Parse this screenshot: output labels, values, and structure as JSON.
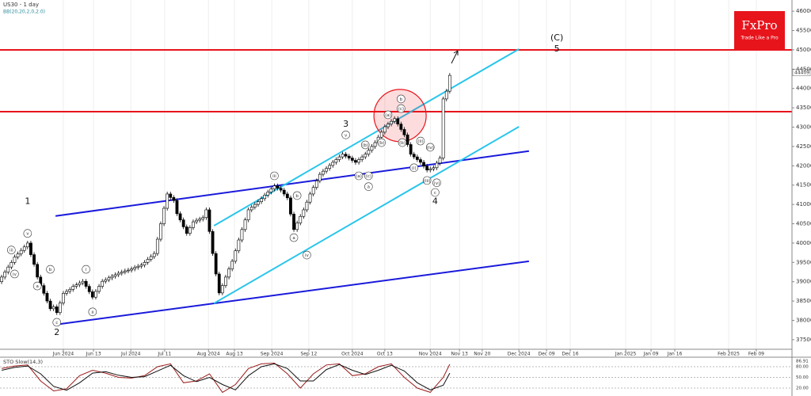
{
  "header": {
    "symbol": "US30 - 1 day",
    "indicator": "BB(20,20,2,0,2.0)"
  },
  "logo": {
    "name": "FxPro",
    "tagline": "Trade Like a Pro"
  },
  "chart_data": [
    {
      "type": "candlestick",
      "xlim": [
        -0.5,
        243.4
      ],
      "xticks": [
        {
          "value": 19,
          "label": "Jun 2024"
        },
        {
          "value": 28.3,
          "label": "Jun 13"
        },
        {
          "value": 39.8,
          "label": "Jul 2024"
        },
        {
          "value": 50.2,
          "label": "Jul 11"
        },
        {
          "value": 63.7,
          "label": "Aug 2024"
        },
        {
          "value": 71.7,
          "label": "Aug 13"
        },
        {
          "value": 83.2,
          "label": "Sep 2024"
        },
        {
          "value": 94.6,
          "label": "Sep 12"
        },
        {
          "value": 108,
          "label": "Oct 2024"
        },
        {
          "value": 118,
          "label": "Oct 13"
        },
        {
          "value": 132,
          "label": "Nov 2024"
        },
        {
          "value": 141,
          "label": "Nov 13"
        },
        {
          "value": 148,
          "label": "Nov 20"
        },
        {
          "value": 159.3,
          "label": "Dec 2024"
        },
        {
          "value": 167.8,
          "label": "Dec 09"
        },
        {
          "value": 175.1,
          "label": "Dec 16"
        },
        {
          "value": 192.2,
          "label": "Jan 2025"
        },
        {
          "value": 200,
          "label": "Jan 09"
        },
        {
          "value": 207.3,
          "label": "Jan 16"
        },
        {
          "value": 223.9,
          "label": "Feb 2025"
        },
        {
          "value": 232.4,
          "label": "Feb 09"
        }
      ],
      "ylim": [
        37170,
        46290
      ],
      "yticks": [
        37500,
        38000,
        38500,
        39000,
        39500,
        40000,
        40500,
        41000,
        41500,
        42000,
        42500,
        43000,
        43500,
        44000,
        44500,
        45000,
        45500,
        46000
      ],
      "xgrid": true,
      "up_color": "#ffffff",
      "down_color": "#000000",
      "last_price": 44409,
      "open": [
        39000,
        39120,
        39250,
        39380,
        39500,
        39640,
        39720,
        39810,
        39900,
        40000,
        39700,
        39450,
        39120,
        38900,
        38700,
        38500,
        38300,
        38350,
        38200,
        38450,
        38700,
        38750,
        38800,
        38880,
        38920,
        38970,
        39010,
        38880,
        38740,
        38600,
        38750,
        38880,
        39010,
        39050,
        39100,
        39140,
        39180,
        39220,
        39250,
        39280,
        39300,
        39330,
        39370,
        39400,
        39430,
        39500,
        39580,
        39650,
        39730,
        40100,
        40500,
        40900,
        41270,
        41180,
        41100,
        40760,
        40600,
        40420,
        40250,
        40400,
        40550,
        40590,
        40620,
        40660,
        40860,
        40300,
        39730,
        39200,
        38710,
        38900,
        39120,
        39330,
        39530,
        39800,
        40080,
        40350,
        40600,
        40860,
        40930,
        41000,
        41070,
        41150,
        41240,
        41320,
        41400,
        41480,
        41420,
        41370,
        41270,
        41170,
        40750,
        40350,
        40520,
        40690,
        40860,
        41060,
        41270,
        41440,
        41610,
        41780,
        41860,
        41930,
        42010,
        42090,
        42160,
        42230,
        42300,
        42250,
        42200,
        42140,
        42090,
        42160,
        42230,
        42300,
        42400,
        42500,
        42600,
        42740,
        42870,
        43010,
        43080,
        43150,
        43220,
        43080,
        42940,
        42800,
        42550,
        42300,
        42230,
        42160,
        42090,
        41990,
        41890,
        41920,
        41950,
        42070,
        42200,
        43730,
        43930
      ],
      "high": [
        39180,
        39310,
        39440,
        39560,
        39700,
        39780,
        39870,
        39960,
        40060,
        40060,
        39760,
        39510,
        39180,
        38960,
        38760,
        38560,
        38410,
        38410,
        38510,
        38760,
        38810,
        38860,
        38940,
        38980,
        39030,
        39070,
        39070,
        38940,
        38800,
        38810,
        38940,
        39070,
        39110,
        39160,
        39200,
        39240,
        39280,
        39310,
        39340,
        39360,
        39390,
        39430,
        39460,
        39490,
        39560,
        39640,
        39710,
        39790,
        40160,
        40560,
        40960,
        41330,
        41330,
        41240,
        41160,
        40820,
        40660,
        40480,
        40460,
        40610,
        40650,
        40680,
        40720,
        40920,
        40920,
        40360,
        39790,
        39260,
        38960,
        39180,
        39390,
        39590,
        39860,
        40140,
        40410,
        40660,
        40920,
        40990,
        41060,
        41130,
        41210,
        41300,
        41380,
        41460,
        41540,
        41540,
        41480,
        41430,
        41330,
        41230,
        40810,
        40580,
        40750,
        40920,
        41120,
        41330,
        41500,
        41670,
        41840,
        41920,
        41990,
        42070,
        42150,
        42220,
        42290,
        42360,
        42360,
        42310,
        42260,
        42200,
        42220,
        42290,
        42360,
        42460,
        42560,
        42660,
        42800,
        42930,
        43070,
        43140,
        43210,
        43280,
        43280,
        43140,
        43000,
        42860,
        42610,
        42360,
        42290,
        42220,
        42150,
        42050,
        41980,
        42010,
        42130,
        42260,
        43790,
        43990,
        44400
      ],
      "low": [
        38940,
        39060,
        39190,
        39320,
        39440,
        39580,
        39660,
        39750,
        39840,
        39640,
        39390,
        39060,
        38840,
        38640,
        38440,
        38240,
        38240,
        38140,
        38140,
        38390,
        38640,
        38690,
        38740,
        38820,
        38860,
        38910,
        38820,
        38680,
        38540,
        38540,
        38690,
        38820,
        38950,
        38990,
        39040,
        39080,
        39120,
        39160,
        39190,
        39220,
        39240,
        39270,
        39310,
        39340,
        39370,
        39440,
        39520,
        39590,
        39670,
        40040,
        40440,
        40840,
        41120,
        41040,
        40700,
        40540,
        40360,
        40190,
        40190,
        40340,
        40490,
        40530,
        40560,
        40600,
        40240,
        39670,
        39140,
        38650,
        38650,
        38840,
        39060,
        39270,
        39470,
        39740,
        40020,
        40290,
        40540,
        40800,
        40870,
        40940,
        41010,
        41090,
        41180,
        41260,
        41340,
        41360,
        41310,
        41210,
        41110,
        40690,
        40290,
        40290,
        40460,
        40630,
        40800,
        41000,
        41210,
        41380,
        41550,
        41720,
        41800,
        41870,
        41950,
        42030,
        42100,
        42170,
        42190,
        42140,
        42080,
        42030,
        42030,
        42100,
        42170,
        42240,
        42340,
        42440,
        42540,
        42680,
        42810,
        42950,
        43020,
        43090,
        43020,
        42880,
        42740,
        42490,
        42240,
        42170,
        42100,
        42030,
        41930,
        41830,
        41830,
        41860,
        41890,
        42010,
        42140,
        43670,
        43870
      ],
      "close": [
        39120,
        39250,
        39380,
        39500,
        39640,
        39720,
        39810,
        39900,
        40000,
        39700,
        39450,
        39120,
        38900,
        38700,
        38500,
        38300,
        38350,
        38200,
        38450,
        38700,
        38750,
        38800,
        38880,
        38920,
        38970,
        39010,
        38880,
        38740,
        38600,
        38750,
        38880,
        39010,
        39050,
        39100,
        39140,
        39180,
        39220,
        39250,
        39280,
        39300,
        39330,
        39370,
        39400,
        39430,
        39500,
        39580,
        39650,
        39730,
        40100,
        40500,
        40900,
        41270,
        41180,
        41100,
        40760,
        40600,
        40420,
        40250,
        40400,
        40550,
        40590,
        40620,
        40660,
        40860,
        40300,
        39730,
        39200,
        38710,
        38900,
        39120,
        39330,
        39530,
        39800,
        40080,
        40350,
        40600,
        40860,
        40930,
        41000,
        41070,
        41150,
        41240,
        41320,
        41400,
        41480,
        41420,
        41370,
        41270,
        41170,
        40750,
        40350,
        40520,
        40690,
        40860,
        41060,
        41270,
        41440,
        41610,
        41780,
        41860,
        41930,
        42010,
        42090,
        42160,
        42230,
        42300,
        42250,
        42200,
        42140,
        42090,
        42160,
        42230,
        42300,
        42400,
        42500,
        42600,
        42740,
        42870,
        43010,
        43080,
        43150,
        43220,
        43080,
        42940,
        42800,
        42550,
        42300,
        42230,
        42160,
        42090,
        41990,
        41890,
        41920,
        41950,
        42070,
        42200,
        43730,
        43930,
        44340
      ],
      "levels": [
        {
          "value": 45000,
          "color": "#e8141c"
        },
        {
          "value": 43400,
          "color": "#e8141c"
        }
      ],
      "trend_lines": [
        {
          "color": "#1a1adc",
          "x": [
            16.6,
            162.4
          ],
          "y": [
            40700,
            42380
          ]
        },
        {
          "color": "#1a1adc",
          "x": [
            16.6,
            162.4
          ],
          "y": [
            37890,
            39530
          ]
        },
        {
          "color": "#29c5ec",
          "x": [
            65.4,
            159.3
          ],
          "y": [
            40450,
            45020
          ]
        },
        {
          "color": "#29c5ec",
          "x": [
            65.4,
            159.3
          ],
          "y": [
            38440,
            43010
          ]
        }
      ],
      "highlight": {
        "x": 122.7,
        "y": 43300,
        "color": "#e8141c"
      },
      "wave_labels": [
        {
          "label": "1",
          "x": 8,
          "y": 41070,
          "circled": false
        },
        {
          "label": "v",
          "x": 8,
          "y": 40250,
          "circled": true
        },
        {
          "label": "iii",
          "x": 3,
          "y": 39820,
          "circled": true
        },
        {
          "label": "iv",
          "x": 4,
          "y": 39200,
          "circled": true
        },
        {
          "label": "a",
          "x": 11,
          "y": 38890,
          "circled": true
        },
        {
          "label": "b",
          "x": 15,
          "y": 39320,
          "circled": true
        },
        {
          "label": "c",
          "x": 17,
          "y": 37950,
          "circled": true
        },
        {
          "label": "2",
          "x": 17,
          "y": 37680,
          "circled": false
        },
        {
          "label": "i",
          "x": 26,
          "y": 39320,
          "circled": true
        },
        {
          "label": "ii",
          "x": 28,
          "y": 38220,
          "circled": true
        },
        {
          "label": "iii",
          "x": 84,
          "y": 41740,
          "circled": true
        },
        {
          "label": "a",
          "x": 90,
          "y": 40140,
          "circled": true
        },
        {
          "label": "b",
          "x": 91,
          "y": 41230,
          "circled": true
        },
        {
          "label": "iv",
          "x": 94,
          "y": 39690,
          "circled": true
        },
        {
          "label": "3",
          "x": 106,
          "y": 43070,
          "circled": false
        },
        {
          "label": "v",
          "x": 106,
          "y": 42800,
          "circled": true
        },
        {
          "label": "(b)",
          "x": 112,
          "y": 42540,
          "circled": true
        },
        {
          "label": "(a)",
          "x": 110,
          "y": 41740,
          "circled": true
        },
        {
          "label": "(c)",
          "x": 113,
          "y": 41740,
          "circled": true
        },
        {
          "label": "a",
          "x": 113,
          "y": 41460,
          "circled": true
        },
        {
          "label": "(a)",
          "x": 119,
          "y": 43320,
          "circled": true
        },
        {
          "label": "b",
          "x": 123,
          "y": 43730,
          "circled": true
        },
        {
          "label": "(c)",
          "x": 123,
          "y": 43480,
          "circled": true
        },
        {
          "label": "(b)",
          "x": 117,
          "y": 42600,
          "circled": true
        },
        {
          "label": "(b)",
          "x": 123.4,
          "y": 42600,
          "circled": true
        },
        {
          "label": "(ii)",
          "x": 129,
          "y": 42640,
          "circled": true
        },
        {
          "label": "(i)",
          "x": 127,
          "y": 41950,
          "circled": true
        },
        {
          "label": "(iv)",
          "x": 132,
          "y": 42480,
          "circled": true
        },
        {
          "label": "(iii)",
          "x": 131,
          "y": 41620,
          "circled": true
        },
        {
          "label": "(v)",
          "x": 134,
          "y": 41560,
          "circled": true
        },
        {
          "label": "c",
          "x": 133.5,
          "y": 41310,
          "circled": true
        },
        {
          "label": "4",
          "x": 133.5,
          "y": 41070,
          "circled": false
        },
        {
          "label": "(C)",
          "x": 171,
          "y": 45310,
          "circled": false
        },
        {
          "label": "5",
          "x": 171,
          "y": 45020,
          "circled": false
        }
      ]
    },
    {
      "type": "line",
      "title": "STO Slow(14,3)",
      "xlim": [
        -0.5,
        243.4
      ],
      "ylim": [
        0,
        100
      ],
      "yticks": [
        {
          "value": 80,
          "label": "80.00"
        },
        {
          "value": 50,
          "label": "50.00"
        },
        {
          "value": 20,
          "label": "20.00"
        }
      ],
      "x": [
        0,
        4,
        8,
        12,
        16,
        20,
        24,
        28,
        32,
        36,
        40,
        44,
        48,
        52,
        56,
        60,
        64,
        68,
        72,
        76,
        80,
        84,
        88,
        92,
        96,
        100,
        104,
        108,
        112,
        116,
        120,
        124,
        128,
        132,
        136,
        138
      ],
      "series": [
        {
          "color": "#9b1b1b",
          "values": [
            75,
            82,
            85,
            40,
            12,
            18,
            55,
            70,
            62,
            50,
            48,
            55,
            80,
            88,
            35,
            40,
            60,
            8,
            30,
            75,
            88,
            90,
            60,
            20,
            60,
            85,
            88,
            55,
            60,
            80,
            88,
            50,
            20,
            8,
            50,
            86.91
          ],
          "value_labels": [
            null,
            null,
            null,
            null,
            null,
            null,
            null,
            null,
            null,
            null,
            null,
            null,
            null,
            null,
            null,
            null,
            null,
            null,
            null,
            null,
            null,
            null,
            null,
            null,
            null,
            null,
            null,
            null,
            null,
            null,
            null,
            null,
            null,
            null,
            null,
            "86.91"
          ]
        },
        {
          "color": "#111111",
          "values": [
            70,
            78,
            82,
            60,
            25,
            14,
            35,
            62,
            66,
            56,
            50,
            52,
            68,
            84,
            55,
            38,
            50,
            30,
            15,
            55,
            80,
            88,
            75,
            40,
            40,
            72,
            86,
            70,
            58,
            70,
            84,
            68,
            35,
            15,
            28,
            62
          ]
        }
      ]
    }
  ]
}
